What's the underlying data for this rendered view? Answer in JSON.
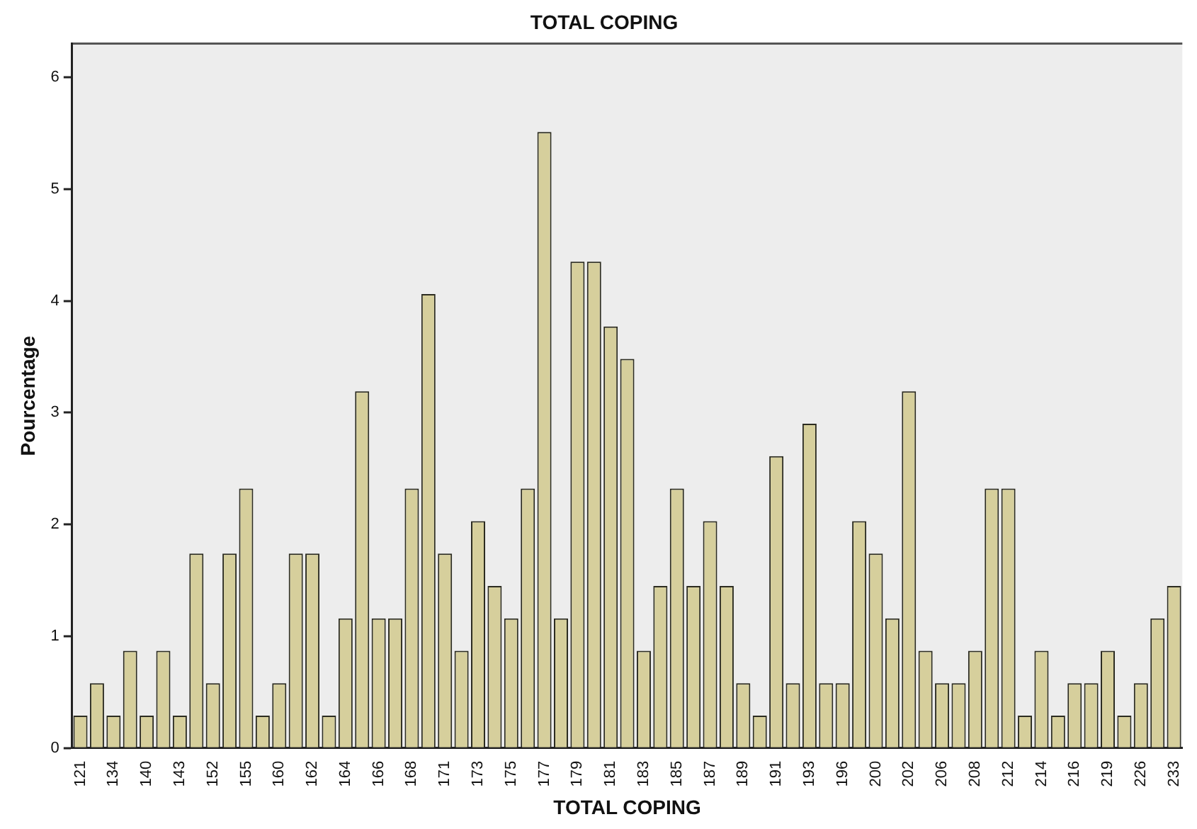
{
  "chart_data": {
    "type": "bar",
    "title": "TOTAL COPING",
    "xlabel": "TOTAL COPING",
    "ylabel": "Pourcentage",
    "categories": [
      "121",
      null,
      "134",
      null,
      "140",
      null,
      "143",
      null,
      "152",
      null,
      "155",
      null,
      "160",
      null,
      "162",
      null,
      "164",
      null,
      "166",
      null,
      "168",
      null,
      "171",
      null,
      "173",
      null,
      "175",
      null,
      "177",
      null,
      "179",
      null,
      "181",
      null,
      "183",
      null,
      "185",
      null,
      "187",
      null,
      "189",
      null,
      "191",
      null,
      "193",
      null,
      "196",
      null,
      "200",
      null,
      "202",
      null,
      "206",
      null,
      "208",
      null,
      "212",
      null,
      "214",
      null,
      "216",
      null,
      "219",
      null,
      "226",
      null,
      "233"
    ],
    "values": [
      0.29,
      0.58,
      0.29,
      0.87,
      0.29,
      0.87,
      0.29,
      1.74,
      0.58,
      1.74,
      2.32,
      0.29,
      0.58,
      1.74,
      1.74,
      0.29,
      1.16,
      3.19,
      1.16,
      1.16,
      2.32,
      4.06,
      1.74,
      0.87,
      2.03,
      1.45,
      1.16,
      2.32,
      5.51,
      1.16,
      4.35,
      4.35,
      3.77,
      3.48,
      0.87,
      1.45,
      2.32,
      1.45,
      2.03,
      1.45,
      0.58,
      0.29,
      2.61,
      0.58,
      2.9,
      0.58,
      0.58,
      2.03,
      1.74,
      1.16,
      3.19,
      0.87,
      0.58,
      0.58,
      0.87,
      2.32,
      2.32,
      0.29,
      0.87,
      0.29,
      0.58,
      0.58,
      0.87,
      0.29,
      0.58,
      1.16,
      1.45
    ],
    "color": "#d6cf9c",
    "ylim": [
      0,
      6.3
    ],
    "yticks": [
      0,
      1,
      2,
      3,
      4,
      5,
      6
    ],
    "grid": false,
    "legend": false
  }
}
